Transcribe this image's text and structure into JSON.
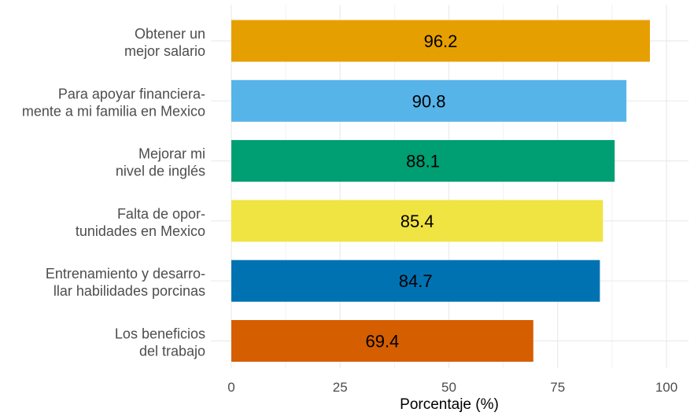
{
  "chart_data": {
    "type": "bar",
    "orientation": "horizontal",
    "title": "",
    "xlabel": "Porcentaje (%)",
    "ylabel": "",
    "xlim": [
      0,
      100
    ],
    "xticks": [
      0,
      25,
      50,
      75,
      100
    ],
    "xtick_labels": [
      "0",
      "25",
      "50",
      "75",
      "100"
    ],
    "grid": true,
    "categories": [
      [
        "Obtener un",
        "mejor salario"
      ],
      [
        "Para apoyar financiera-",
        "mente a mi familia en Mexico"
      ],
      [
        "Mejorar mi",
        "nivel de inglés"
      ],
      [
        "Falta de opor-",
        "tunidades en Mexico"
      ],
      [
        "Entrenamiento y desarro-",
        "llar habilidades porcinas"
      ],
      [
        "Los beneficios",
        "del trabajo"
      ]
    ],
    "values": [
      96.2,
      90.8,
      88.1,
      85.4,
      84.7,
      69.4
    ],
    "value_labels": [
      "96.2",
      "90.8",
      "88.1",
      "85.4",
      "84.7",
      "69.4"
    ],
    "colors": [
      "#E69F00",
      "#56B4E9",
      "#009E73",
      "#F0E442",
      "#0072B2",
      "#D55E00"
    ]
  }
}
